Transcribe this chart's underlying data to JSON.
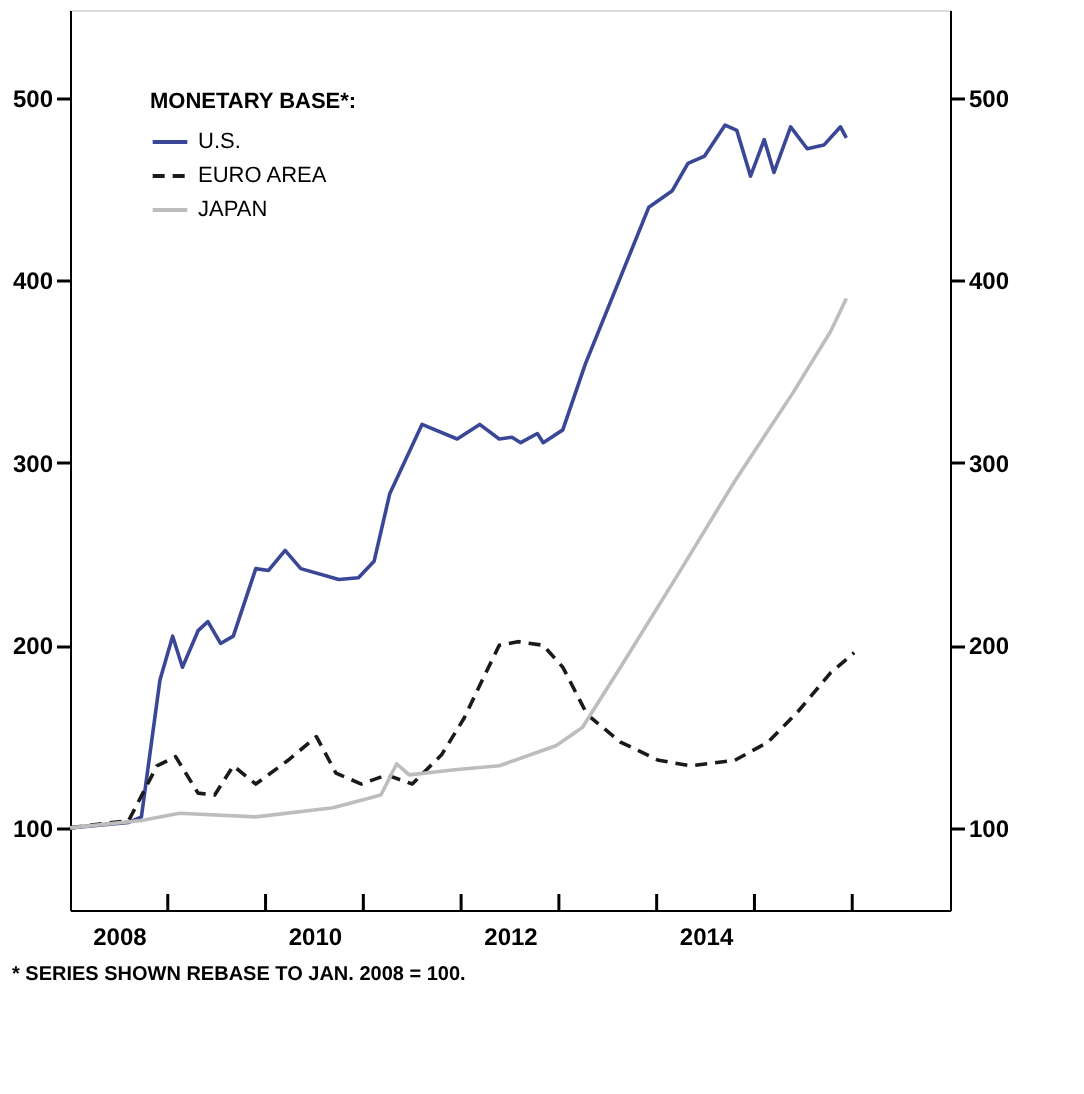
{
  "chart_data": {
    "type": "line",
    "legend_title": "MONETARY BASE*:",
    "annotations": [
      "* SERIES SHOWN REBASE TO JAN. 2008 = 100."
    ],
    "xlim": [
      2008,
      2017
    ],
    "xticks": [
      {
        "value": 2008.5,
        "label": "2008"
      },
      {
        "value": 2009,
        "label": null
      },
      {
        "value": 2010,
        "label": null
      },
      {
        "value": 2010.5,
        "label": "2010"
      },
      {
        "value": 2011,
        "label": null
      },
      {
        "value": 2012,
        "label": null
      },
      {
        "value": 2012.5,
        "label": "2012"
      },
      {
        "value": 2013,
        "label": null
      },
      {
        "value": 2014,
        "label": null
      },
      {
        "value": 2014.5,
        "label": "2014"
      },
      {
        "value": 2015,
        "label": null
      },
      {
        "value": 2016,
        "label": null
      }
    ],
    "ylim": [
      55,
      548
    ],
    "yticks": [
      100,
      200,
      300,
      400,
      500
    ],
    "y2lim": [
      55,
      548
    ],
    "y2ticks": [
      100,
      200,
      300,
      400,
      500
    ],
    "grid": false,
    "legend": "top left",
    "series": [
      {
        "name": "U.S.",
        "color": "#3a4696",
        "line_style": "solid",
        "x": [
          2008.0,
          2008.6,
          2008.73,
          2008.92,
          2009.05,
          2009.15,
          2009.31,
          2009.41,
          2009.54,
          2009.67,
          2009.9,
          2010.03,
          2010.2,
          2010.36,
          2010.75,
          2010.95,
          2011.11,
          2011.27,
          2011.6,
          2011.96,
          2012.19,
          2012.39,
          2012.52,
          2012.61,
          2012.78,
          2012.84,
          2013.04,
          2013.27,
          2013.92,
          2014.16,
          2014.32,
          2014.49,
          2014.7,
          2014.82,
          2014.96,
          2015.1,
          2015.2,
          2015.37,
          2015.54,
          2015.71,
          2015.88,
          2015.94
        ],
        "values": [
          100,
          103,
          106,
          181,
          205,
          188,
          208,
          213,
          201,
          205,
          242,
          241,
          252,
          242,
          236,
          237,
          246,
          283,
          321,
          313,
          321,
          313,
          314,
          311,
          316,
          311,
          318,
          354,
          440,
          449,
          464,
          468,
          485,
          482,
          457,
          477,
          459,
          484,
          472,
          474,
          484,
          478
        ]
      },
      {
        "name": "EURO AREA",
        "color": "#1a1a1a",
        "line_style": "dashed",
        "x": [
          2008.0,
          2008.6,
          2008.89,
          2009.08,
          2009.31,
          2009.48,
          2009.67,
          2009.9,
          2010.23,
          2010.52,
          2010.72,
          2010.98,
          2011.24,
          2011.5,
          2011.8,
          2012.03,
          2012.19,
          2012.39,
          2012.58,
          2012.84,
          2013.04,
          2013.29,
          2013.63,
          2014.02,
          2014.35,
          2014.8,
          2015.14,
          2015.45,
          2015.78,
          2016.02
        ],
        "values": [
          100,
          104,
          134,
          139,
          119,
          118,
          134,
          124,
          137,
          150,
          130,
          124,
          129,
          124,
          140,
          160,
          178,
          200,
          202,
          200,
          188,
          162,
          147,
          137,
          134,
          137,
          147,
          164,
          185,
          196
        ]
      },
      {
        "name": "JAPAN",
        "color": "#bdbdbd",
        "line_style": "solid",
        "x": [
          2008.0,
          2008.73,
          2009.12,
          2009.9,
          2010.69,
          2011.18,
          2011.34,
          2011.47,
          2011.96,
          2012.39,
          2012.97,
          2013.24,
          2013.63,
          2014.22,
          2014.8,
          2015.39,
          2015.78,
          2015.94
        ],
        "values": [
          100,
          104,
          108,
          106,
          111,
          118,
          135,
          129,
          132,
          134,
          145,
          155,
          188,
          239,
          290,
          338,
          372,
          390
        ]
      }
    ]
  }
}
